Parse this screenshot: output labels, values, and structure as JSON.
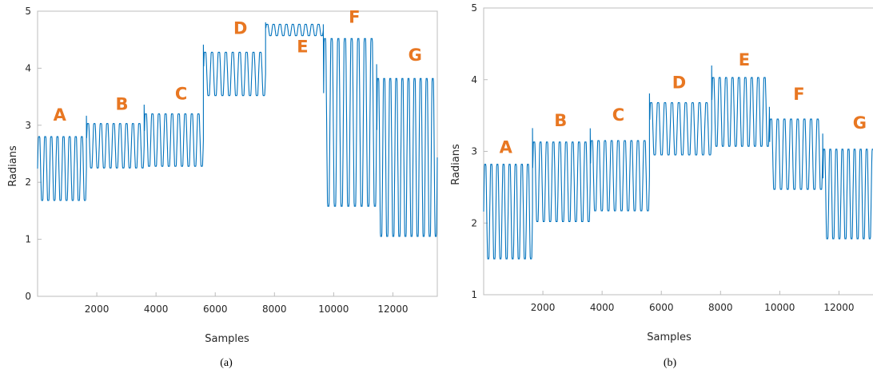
{
  "chart_data": [
    {
      "type": "line",
      "caption": "(a)",
      "xlabel": "Samples",
      "ylabel": "Radians",
      "xlim": [
        0,
        13500
      ],
      "ylim": [
        0,
        5
      ],
      "xticks": [
        2000,
        4000,
        6000,
        8000,
        10000,
        12000
      ],
      "yticks": [
        0,
        1,
        2,
        3,
        4,
        5
      ],
      "grid": false,
      "color": "#0072bd",
      "segments": [
        {
          "label": "A",
          "x_start": 0,
          "x_end": 1650,
          "low": 1.68,
          "high": 2.8,
          "cycles": 8,
          "label_x": 750,
          "label_y": 3.08
        },
        {
          "label": "B",
          "x_start": 1650,
          "x_end": 3600,
          "low": 2.25,
          "high": 3.03,
          "cycles": 9,
          "label_x": 2850,
          "label_y": 3.27
        },
        {
          "label": "C",
          "x_start": 3600,
          "x_end": 5600,
          "low": 2.28,
          "high": 3.2,
          "cycles": 9,
          "label_x": 4850,
          "label_y": 3.45
        },
        {
          "label": "D",
          "x_start": 5600,
          "x_end": 7700,
          "low": 3.52,
          "high": 4.28,
          "cycles": 9,
          "label_x": 6850,
          "label_y": 4.6
        },
        {
          "label": "E",
          "x_start": 7700,
          "x_end": 9650,
          "low": 4.57,
          "high": 4.77,
          "cycles": 9,
          "label_x": 8950,
          "label_y": 4.28
        },
        {
          "label": "F",
          "x_start": 9650,
          "x_end": 11450,
          "low": 1.58,
          "high": 4.52,
          "cycles": 8,
          "label_x": 10700,
          "label_y": 4.8
        },
        {
          "label": "G",
          "x_start": 11450,
          "x_end": 13500,
          "low": 1.05,
          "high": 3.82,
          "cycles": 10,
          "label_x": 12750,
          "label_y": 4.13
        }
      ]
    },
    {
      "type": "line",
      "caption": "(b)",
      "xlabel": "Samples",
      "ylabel": "Radians",
      "xlim": [
        0,
        13500
      ],
      "ylim": [
        1,
        5
      ],
      "xticks": [
        2000,
        4000,
        6000,
        8000,
        10000,
        12000
      ],
      "yticks": [
        1,
        2,
        3,
        4,
        5
      ],
      "grid": false,
      "color": "#0072bd",
      "segments": [
        {
          "label": "A",
          "x_start": 0,
          "x_end": 1650,
          "low": 1.5,
          "high": 2.82,
          "cycles": 8,
          "label_x": 750,
          "label_y": 2.98
        },
        {
          "label": "B",
          "x_start": 1650,
          "x_end": 3600,
          "low": 2.02,
          "high": 3.13,
          "cycles": 9,
          "label_x": 2600,
          "label_y": 3.35
        },
        {
          "label": "C",
          "x_start": 3600,
          "x_end": 5600,
          "low": 2.17,
          "high": 3.15,
          "cycles": 9,
          "label_x": 4550,
          "label_y": 3.43
        },
        {
          "label": "D",
          "x_start": 5600,
          "x_end": 7700,
          "low": 2.95,
          "high": 3.68,
          "cycles": 9,
          "label_x": 6600,
          "label_y": 3.88
        },
        {
          "label": "E",
          "x_start": 7700,
          "x_end": 9650,
          "low": 3.07,
          "high": 4.03,
          "cycles": 9,
          "label_x": 8800,
          "label_y": 4.2
        },
        {
          "label": "F",
          "x_start": 9650,
          "x_end": 11450,
          "low": 2.47,
          "high": 3.45,
          "cycles": 8,
          "label_x": 10650,
          "label_y": 3.72
        },
        {
          "label": "G",
          "x_start": 11450,
          "x_end": 13500,
          "low": 1.78,
          "high": 3.03,
          "cycles": 10,
          "label_x": 12700,
          "label_y": 3.32
        }
      ]
    }
  ]
}
